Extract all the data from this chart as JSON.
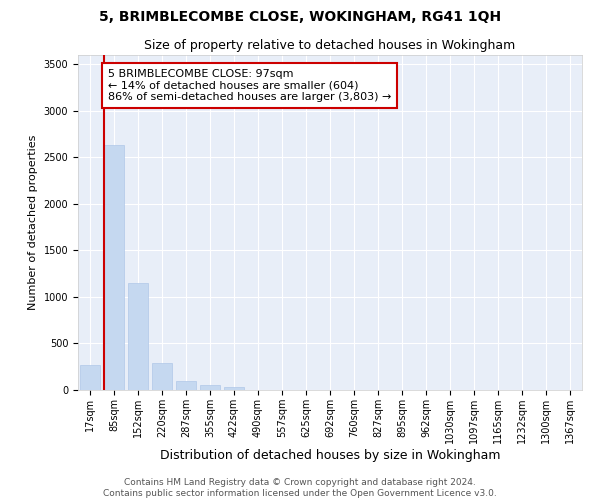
{
  "title": "5, BRIMBLECOMBE CLOSE, WOKINGHAM, RG41 1QH",
  "subtitle": "Size of property relative to detached houses in Wokingham",
  "xlabel": "Distribution of detached houses by size in Wokingham",
  "ylabel": "Number of detached properties",
  "bar_color": "#c5d8f0",
  "background_color": "#e8eef8",
  "grid_color": "#ffffff",
  "categories": [
    "17sqm",
    "85sqm",
    "152sqm",
    "220sqm",
    "287sqm",
    "355sqm",
    "422sqm",
    "490sqm",
    "557sqm",
    "625sqm",
    "692sqm",
    "760sqm",
    "827sqm",
    "895sqm",
    "962sqm",
    "1030sqm",
    "1097sqm",
    "1165sqm",
    "1232sqm",
    "1300sqm",
    "1367sqm"
  ],
  "values": [
    265,
    2630,
    1155,
    285,
    100,
    50,
    35,
    0,
    0,
    0,
    0,
    0,
    0,
    0,
    0,
    0,
    0,
    0,
    0,
    0,
    0
  ],
  "vline_index": 1,
  "vline_color": "#cc0000",
  "annotation_text": "5 BRIMBLECOMBE CLOSE: 97sqm\n← 14% of detached houses are smaller (604)\n86% of semi-detached houses are larger (3,803) →",
  "annotation_box_color": "#cc0000",
  "ylim": [
    0,
    3600
  ],
  "yticks": [
    0,
    500,
    1000,
    1500,
    2000,
    2500,
    3000,
    3500
  ],
  "footer_line1": "Contains HM Land Registry data © Crown copyright and database right 2024.",
  "footer_line2": "Contains public sector information licensed under the Open Government Licence v3.0.",
  "title_fontsize": 10,
  "subtitle_fontsize": 9,
  "xlabel_fontsize": 9,
  "ylabel_fontsize": 8,
  "tick_fontsize": 7,
  "footer_fontsize": 6.5,
  "ann_fontsize": 8
}
